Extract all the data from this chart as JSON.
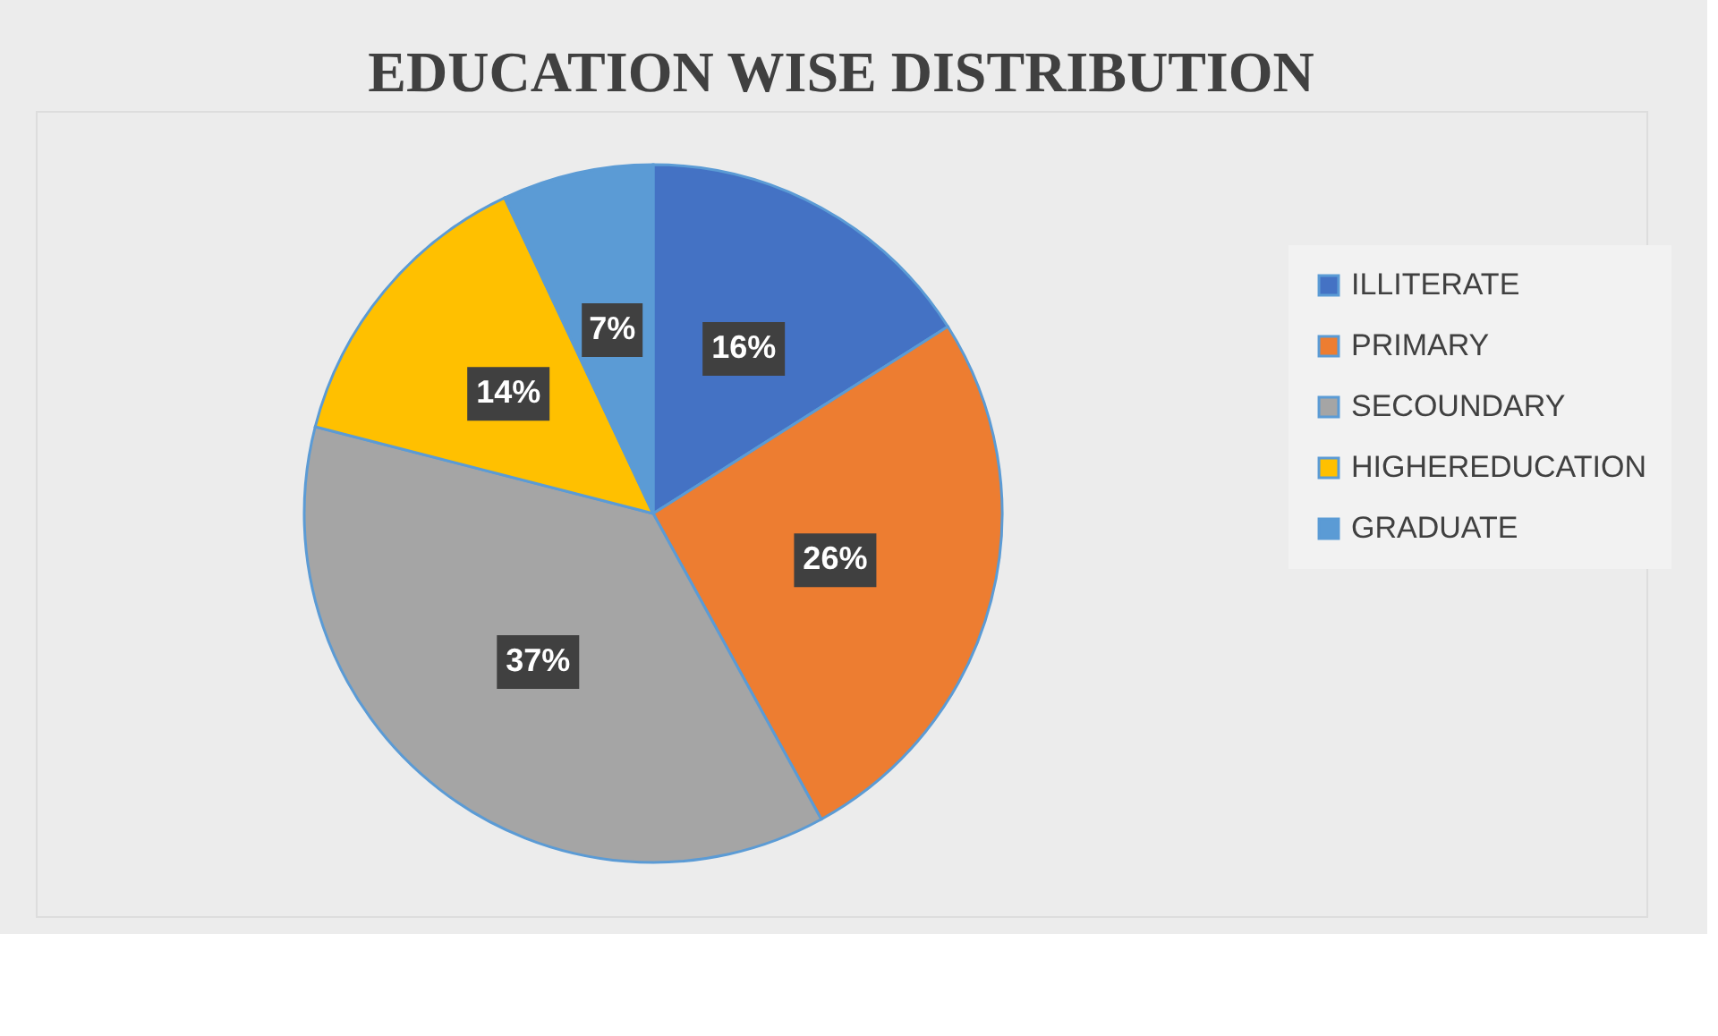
{
  "chart_data": {
    "type": "pie",
    "title": "EDUCATION WISE DISTRIBUTION",
    "categories": [
      "ILLITERATE",
      "PRIMARY",
      "SECOUNDARY",
      "HIGHEREDUCATION",
      "GRADUATE"
    ],
    "values": [
      16,
      26,
      37,
      14,
      7
    ],
    "value_labels": [
      "16%",
      "26%",
      "37%",
      "14%",
      "7%"
    ],
    "colors": [
      "#4472c4",
      "#ed7d31",
      "#a5a5a5",
      "#ffc000",
      "#5b9bd5"
    ],
    "legend": "right"
  }
}
